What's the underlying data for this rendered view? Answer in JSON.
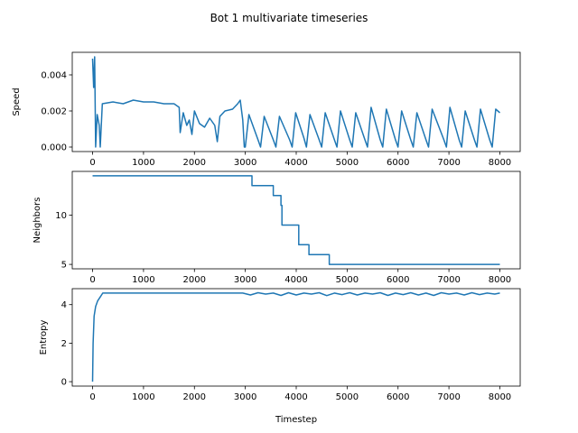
{
  "title": "Bot 1 multivariate timeseries",
  "chart_data": [
    {
      "type": "line",
      "ylabel": "Speed",
      "color": "#1f77b4",
      "xlim": [
        -400,
        8400
      ],
      "xticks": [
        0,
        1000,
        2000,
        3000,
        4000,
        5000,
        6000,
        7000,
        8000
      ],
      "ylim": [
        -0.00025,
        0.00525
      ],
      "yticks": [
        {
          "value": 0,
          "label": "0.000"
        },
        {
          "value": 0.002,
          "label": "0.002"
        },
        {
          "value": 0.004,
          "label": "0.004"
        }
      ],
      "x": [
        0,
        20,
        40,
        60,
        90,
        130,
        150,
        190,
        400,
        600,
        800,
        1000,
        1200,
        1400,
        1600,
        1700,
        1720,
        1780,
        1850,
        1900,
        1950,
        2000,
        2100,
        2200,
        2300,
        2400,
        2450,
        2500,
        2600,
        2750,
        2850,
        2900,
        2950,
        2980,
        3000,
        3070,
        3250,
        3300,
        3370,
        3550,
        3600,
        3670,
        3870,
        3920,
        3990,
        4150,
        4200,
        4270,
        4450,
        4500,
        4570,
        4750,
        4800,
        4870,
        5050,
        5100,
        5170,
        5350,
        5400,
        5470,
        5650,
        5700,
        5770,
        5950,
        6000,
        6070,
        6250,
        6300,
        6370,
        6550,
        6600,
        6670,
        6900,
        6950,
        7020,
        7200,
        7250,
        7320,
        7500,
        7550,
        7620,
        7800,
        7850,
        7920,
        8000
      ],
      "values": [
        0.0049,
        0.0033,
        0.005,
        0.0,
        0.0018,
        0.0012,
        0.0,
        0.0024,
        0.0025,
        0.0024,
        0.0026,
        0.0025,
        0.0025,
        0.0024,
        0.0024,
        0.0022,
        0.0008,
        0.0019,
        0.0012,
        0.0015,
        0.0007,
        0.002,
        0.0013,
        0.0011,
        0.0016,
        0.0012,
        0.0003,
        0.0017,
        0.002,
        0.0021,
        0.0024,
        0.0026,
        0.0015,
        0.0,
        0.0,
        0.0018,
        0.0004,
        0.0,
        0.0017,
        0.0004,
        0.0,
        0.0017,
        0.0004,
        0.0,
        0.0019,
        0.0005,
        0.0,
        0.0018,
        0.0004,
        0.0,
        0.0019,
        0.0004,
        0.0,
        0.002,
        0.0004,
        0.0,
        0.0019,
        0.0004,
        0.0,
        0.0022,
        0.0004,
        0.0,
        0.0021,
        0.0004,
        0.0,
        0.002,
        0.0004,
        0.0,
        0.0019,
        0.0004,
        0.0,
        0.0021,
        0.0004,
        0.0,
        0.0022,
        0.0004,
        0.0,
        0.002,
        0.0004,
        0.0,
        0.0021,
        0.0004,
        0.0,
        0.0021,
        0.0019
      ]
    },
    {
      "type": "line",
      "ylabel": "Neighbors",
      "color": "#1f77b4",
      "xlim": [
        -400,
        8400
      ],
      "xticks": [
        0,
        1000,
        2000,
        3000,
        4000,
        5000,
        6000,
        7000,
        8000
      ],
      "ylim": [
        4.55,
        14.45
      ],
      "yticks": [
        5,
        10
      ],
      "x": [
        0,
        3130,
        3130,
        3550,
        3550,
        3700,
        3700,
        3720,
        3720,
        4050,
        4050,
        4250,
        4250,
        4650,
        4650,
        8000
      ],
      "values": [
        14,
        14,
        13,
        13,
        12,
        12,
        11,
        11,
        9,
        9,
        7,
        7,
        6,
        6,
        5,
        5
      ]
    },
    {
      "type": "line",
      "ylabel": "Entropy",
      "xlabel": "Timestep",
      "color": "#1f77b4",
      "xlim": [
        -400,
        8400
      ],
      "xticks": [
        0,
        1000,
        2000,
        3000,
        4000,
        5000,
        6000,
        7000,
        8000
      ],
      "ylim": [
        -0.23,
        4.83
      ],
      "yticks": [
        0,
        2,
        4
      ],
      "x": [
        0,
        10,
        30,
        60,
        100,
        150,
        200,
        2950,
        3100,
        3250,
        3400,
        3550,
        3700,
        3850,
        4000,
        4150,
        4300,
        4450,
        4600,
        4750,
        4900,
        5050,
        5200,
        5350,
        5500,
        5650,
        5800,
        5950,
        6100,
        6250,
        6400,
        6550,
        6700,
        6850,
        7000,
        7150,
        7300,
        7450,
        7600,
        7750,
        7900,
        8000
      ],
      "values": [
        0.0,
        2.0,
        3.4,
        3.9,
        4.2,
        4.4,
        4.6,
        4.6,
        4.5,
        4.62,
        4.55,
        4.6,
        4.48,
        4.62,
        4.5,
        4.6,
        4.55,
        4.62,
        4.47,
        4.6,
        4.52,
        4.62,
        4.5,
        4.6,
        4.55,
        4.62,
        4.48,
        4.6,
        4.52,
        4.62,
        4.5,
        4.6,
        4.48,
        4.62,
        4.55,
        4.6,
        4.5,
        4.62,
        4.52,
        4.6,
        4.55,
        4.6
      ]
    }
  ]
}
